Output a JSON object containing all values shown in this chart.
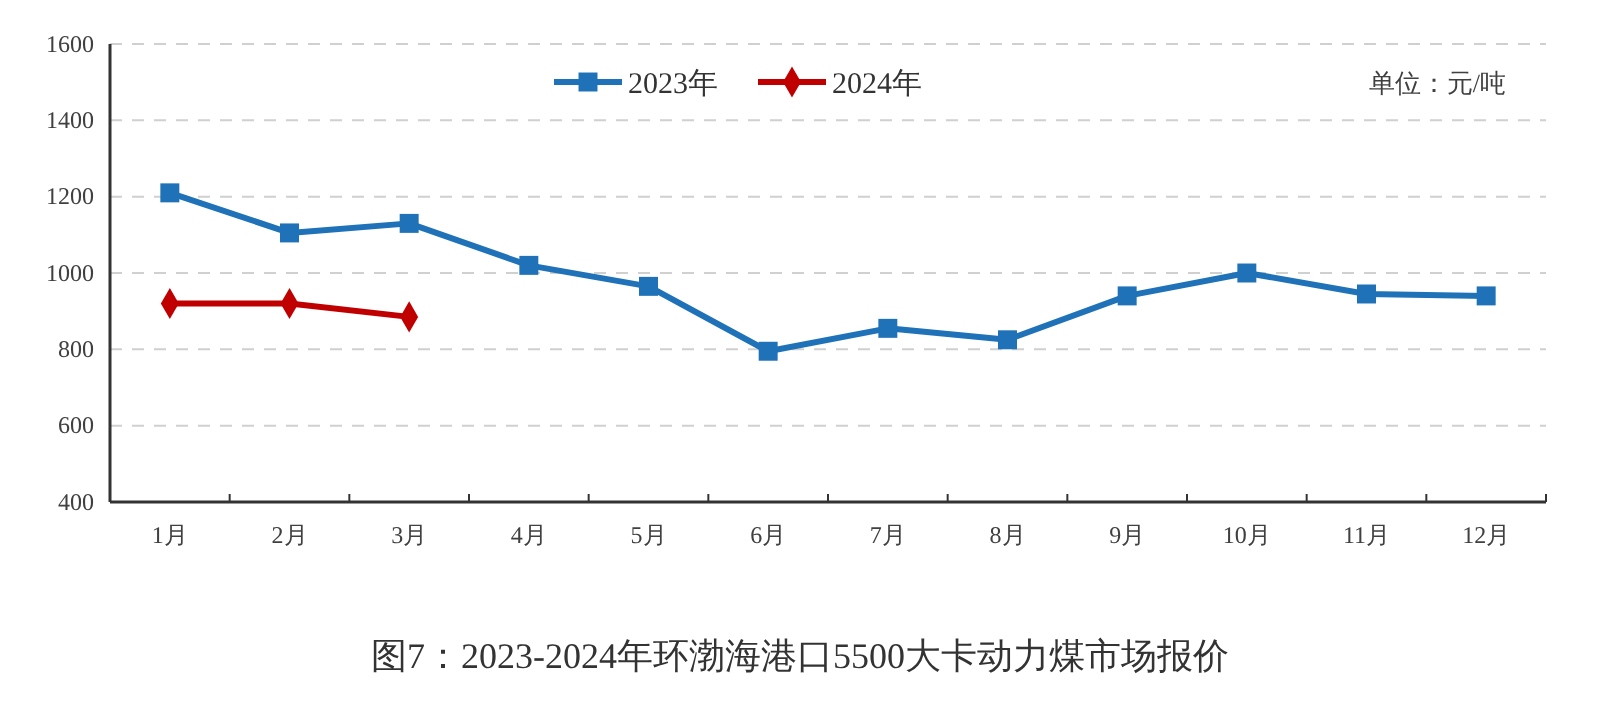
{
  "chart_data": {
    "type": "line",
    "title": "图7：2023-2024年环渤海港口5500大卡动力煤市场报价",
    "annotations": [
      "单位：元/吨"
    ],
    "categories": [
      "1月",
      "2月",
      "3月",
      "4月",
      "5月",
      "6月",
      "7月",
      "8月",
      "9月",
      "10月",
      "11月",
      "12月"
    ],
    "series": [
      {
        "name": "2023年",
        "color": "#1f72b8",
        "marker": "square",
        "values": [
          1210,
          1105,
          1130,
          1020,
          965,
          795,
          855,
          825,
          940,
          1000,
          945,
          940
        ]
      },
      {
        "name": "2024年",
        "color": "#c00000",
        "marker": "diamond",
        "values": [
          920,
          920,
          885,
          null,
          null,
          null,
          null,
          null,
          null,
          null,
          null,
          null
        ]
      }
    ],
    "ylim": [
      400,
      1600
    ],
    "yticks": [
      400,
      600,
      800,
      1000,
      1200,
      1400,
      1600
    ],
    "grid": "y",
    "legend": "top",
    "line_style": "solid"
  }
}
